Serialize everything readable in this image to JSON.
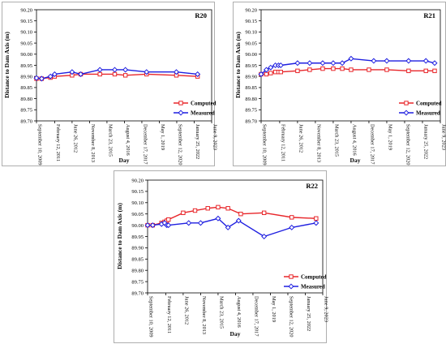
{
  "figure": {
    "colors": {
      "computed": "#e8262a",
      "measured": "#1f1fe0",
      "axis": "#000000",
      "frame": "#9a9a9a"
    }
  },
  "chart_data": [
    {
      "type": "line",
      "title": "R20",
      "xlabel": "Day",
      "ylabel": "Distance to Dam Axis (m)",
      "ylim": [
        89.7,
        90.2
      ],
      "y_ticks": [
        "89.70",
        "89.75",
        "89.80",
        "89.85",
        "89.90",
        "89.95",
        "90.00",
        "90.05",
        "90.10",
        "90.15",
        "90.20"
      ],
      "x_ticks": [
        {
          "date": "2009-09-10",
          "label": "September 10, 2009"
        },
        {
          "date": "2011-02-12",
          "label": "February 12, 2011"
        },
        {
          "date": "2012-06-26",
          "label": "June 26, 2012"
        },
        {
          "date": "2013-11-08",
          "label": "November 8, 2013"
        },
        {
          "date": "2015-03-23",
          "label": "March 23, 2015"
        },
        {
          "date": "2016-08-04",
          "label": "August 4, 2016"
        },
        {
          "date": "2017-12-17",
          "label": "December 17, 2017"
        },
        {
          "date": "2019-05-01",
          "label": "May 1, 2019"
        },
        {
          "date": "2020-09-12",
          "label": "September 12, 2020"
        },
        {
          "date": "2022-01-25",
          "label": "January 25, 2022"
        },
        {
          "date": "2023-06-09",
          "label": "June 9, 2023"
        }
      ],
      "xlim": [
        "2009-09-10",
        "2023-06-09"
      ],
      "legend": "right",
      "series": [
        {
          "name": "Computed",
          "color": "#e8262a",
          "marker": "square",
          "points": [
            [
              "2009-09-10",
              89.89
            ],
            [
              "2010-02-05",
              89.89
            ],
            [
              "2010-10-15",
              89.895
            ],
            [
              "2011-02-12",
              89.9
            ],
            [
              "2012-06-26",
              89.905
            ],
            [
              "2013-03-01",
              89.91
            ],
            [
              "2014-09-01",
              89.91
            ],
            [
              "2015-11-01",
              89.91
            ],
            [
              "2016-09-01",
              89.905
            ],
            [
              "2018-05-01",
              89.91
            ],
            [
              "2020-09-01",
              89.905
            ],
            [
              "2022-05-01",
              89.9
            ]
          ]
        },
        {
          "name": "Measured",
          "color": "#1f1fe0",
          "marker": "diamond",
          "points": [
            [
              "2009-09-10",
              89.893
            ],
            [
              "2010-02-05",
              89.89
            ],
            [
              "2010-10-15",
              89.9
            ],
            [
              "2011-02-12",
              89.91
            ],
            [
              "2012-06-26",
              89.92
            ],
            [
              "2013-03-01",
              89.91
            ],
            [
              "2014-09-01",
              89.93
            ],
            [
              "2015-11-01",
              89.93
            ],
            [
              "2016-09-01",
              89.93
            ],
            [
              "2018-05-01",
              89.92
            ],
            [
              "2020-09-01",
              89.92
            ],
            [
              "2022-05-01",
              89.91
            ]
          ]
        }
      ]
    },
    {
      "type": "line",
      "title": "R21",
      "xlabel": "Day",
      "ylabel": "Distance to Dam Axis (m)",
      "ylim": [
        89.7,
        90.2
      ],
      "y_ticks": [
        "89.70",
        "89.75",
        "89.80",
        "89.85",
        "89.90",
        "89.95",
        "90.00",
        "90.05",
        "90.10",
        "90.15",
        "90.20"
      ],
      "x_ticks": [
        {
          "date": "2009-09-10",
          "label": "September 10, 2009"
        },
        {
          "date": "2011-02-12",
          "label": "February 12, 2011"
        },
        {
          "date": "2012-06-26",
          "label": "June 26, 2012"
        },
        {
          "date": "2013-11-08",
          "label": "November 8, 2013"
        },
        {
          "date": "2015-03-23",
          "label": "March 23, 2015"
        },
        {
          "date": "2016-08-04",
          "label": "August 4, 2016"
        },
        {
          "date": "2017-12-17",
          "label": "December 17, 2017"
        },
        {
          "date": "2019-05-01",
          "label": "May 1, 2019"
        },
        {
          "date": "2020-09-12",
          "label": "September 12, 2020"
        },
        {
          "date": "2022-01-25",
          "label": "January 25, 2022"
        },
        {
          "date": "2023-06-09",
          "label": "June 9, 2023"
        }
      ],
      "xlim": [
        "2009-09-10",
        "2023-06-09"
      ],
      "legend": "right",
      "series": [
        {
          "name": "Computed",
          "color": "#e8262a",
          "marker": "square",
          "points": [
            [
              "2009-09-10",
              89.91
            ],
            [
              "2010-02-05",
              89.91
            ],
            [
              "2010-06-05",
              89.915
            ],
            [
              "2010-10-15",
              89.92
            ],
            [
              "2011-01-10",
              89.92
            ],
            [
              "2011-03-15",
              89.92
            ],
            [
              "2012-06-26",
              89.925
            ],
            [
              "2013-06-01",
              89.93
            ],
            [
              "2014-06-01",
              89.935
            ],
            [
              "2015-03-23",
              89.935
            ],
            [
              "2015-12-01",
              89.935
            ],
            [
              "2016-08-04",
              89.93
            ],
            [
              "2017-12-17",
              89.93
            ],
            [
              "2019-05-01",
              89.93
            ],
            [
              "2021-01-01",
              89.925
            ],
            [
              "2022-05-01",
              89.925
            ],
            [
              "2023-01-01",
              89.925
            ]
          ]
        },
        {
          "name": "Measured",
          "color": "#1f1fe0",
          "marker": "diamond",
          "points": [
            [
              "2009-09-10",
              89.91
            ],
            [
              "2010-02-05",
              89.93
            ],
            [
              "2010-06-05",
              89.94
            ],
            [
              "2010-10-15",
              89.95
            ],
            [
              "2011-01-10",
              89.95
            ],
            [
              "2011-03-15",
              89.95
            ],
            [
              "2012-06-26",
              89.96
            ],
            [
              "2013-06-01",
              89.96
            ],
            [
              "2014-06-01",
              89.96
            ],
            [
              "2015-03-23",
              89.96
            ],
            [
              "2015-12-01",
              89.96
            ],
            [
              "2016-08-04",
              89.98
            ],
            [
              "2018-05-01",
              89.97
            ],
            [
              "2019-05-01",
              89.97
            ],
            [
              "2021-01-01",
              89.97
            ],
            [
              "2022-05-01",
              89.97
            ],
            [
              "2023-01-01",
              89.96
            ]
          ]
        }
      ]
    },
    {
      "type": "line",
      "title": "R22",
      "xlabel": "Day",
      "ylabel": "Distance to Dam Axis (m)",
      "ylim": [
        89.7,
        90.2
      ],
      "y_ticks": [
        "89.70",
        "89.75",
        "89.80",
        "89.85",
        "89.90",
        "89.95",
        "90.00",
        "90.05",
        "90.10",
        "90.15",
        "90.20"
      ],
      "x_ticks": [
        {
          "date": "2009-09-10",
          "label": "September 10, 2009"
        },
        {
          "date": "2011-02-12",
          "label": "February 12, 2011"
        },
        {
          "date": "2012-06-26",
          "label": "June 26, 2012"
        },
        {
          "date": "2013-11-08",
          "label": "November 8, 2013"
        },
        {
          "date": "2015-03-23",
          "label": "March 23, 2015"
        },
        {
          "date": "2016-08-04",
          "label": "August 4, 2016"
        },
        {
          "date": "2017-12-17",
          "label": "December 17, 2017"
        },
        {
          "date": "2019-05-01",
          "label": "May 1, 2019"
        },
        {
          "date": "2020-09-12",
          "label": "September 12, 2020"
        },
        {
          "date": "2022-01-25",
          "label": "January 25, 2022"
        },
        {
          "date": "2023-06-09",
          "label": "June 9, 2023"
        }
      ],
      "xlim": [
        "2009-09-10",
        "2023-06-09"
      ],
      "legend": "bottom-right",
      "series": [
        {
          "name": "Computed",
          "color": "#e8262a",
          "marker": "square",
          "points": [
            [
              "2009-09-10",
              90.0
            ],
            [
              "2010-02-05",
              90.0
            ],
            [
              "2010-10-15",
              90.01
            ],
            [
              "2011-01-10",
              90.015
            ],
            [
              "2011-03-15",
              90.02
            ],
            [
              "2011-05-01",
              90.025
            ],
            [
              "2012-06-26",
              90.055
            ],
            [
              "2013-06-01",
              90.065
            ],
            [
              "2014-06-01",
              90.075
            ],
            [
              "2015-03-23",
              90.08
            ],
            [
              "2016-01-01",
              90.075
            ],
            [
              "2017-01-01",
              90.05
            ],
            [
              "2018-11-01",
              90.055
            ],
            [
              "2021-01-01",
              90.035
            ],
            [
              "2022-12-01",
              90.03
            ]
          ]
        },
        {
          "name": "Measured",
          "color": "#1f1fe0",
          "marker": "diamond",
          "points": [
            [
              "2009-09-10",
              90.0
            ],
            [
              "2010-02-05",
              90.0
            ],
            [
              "2010-10-15",
              90.005
            ],
            [
              "2011-01-10",
              90.01
            ],
            [
              "2011-03-15",
              90.0
            ],
            [
              "2011-05-01",
              90.0
            ],
            [
              "2012-12-01",
              90.01
            ],
            [
              "2013-11-08",
              90.01
            ],
            [
              "2015-03-23",
              90.03
            ],
            [
              "2016-01-01",
              89.99
            ],
            [
              "2016-11-01",
              90.02
            ],
            [
              "2018-11-01",
              89.95
            ],
            [
              "2021-01-01",
              89.99
            ],
            [
              "2022-12-01",
              90.01
            ]
          ]
        }
      ]
    }
  ]
}
